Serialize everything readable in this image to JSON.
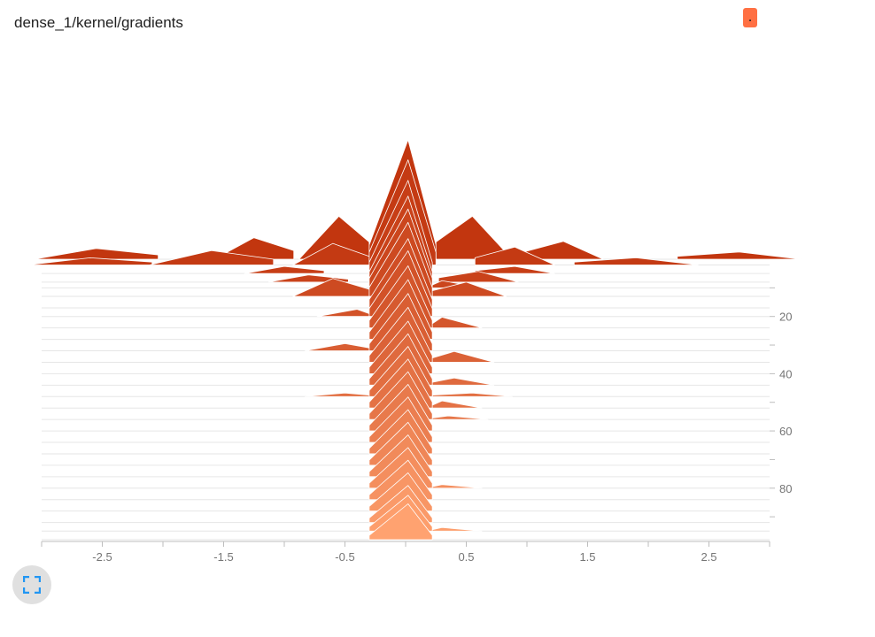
{
  "header": {
    "title": "dense_1/kernel/gradients",
    "run_badge": ".",
    "run_color": "#ff7043"
  },
  "controls": {
    "expand_icon": "fullscreen-icon",
    "expand_color": "#2196f3"
  },
  "chart_data": {
    "type": "histogram-ridgeline",
    "title": "dense_1/kernel/gradients",
    "x_ticks": [
      "-2.5",
      "-1.5",
      "-0.5",
      "0.5",
      "1.5",
      "2.5"
    ],
    "x_tick_values": [
      -2.5,
      -1.5,
      -0.5,
      0.5,
      1.5,
      2.5
    ],
    "xlim": [
      -3.0,
      3.0
    ],
    "y_ticks": [
      "20",
      "40",
      "60",
      "80"
    ],
    "y_tick_values": [
      20,
      40,
      60,
      80
    ],
    "ylim": [
      0,
      98
    ],
    "color_oldest": "#c2360f",
    "color_newest": "#ffa270",
    "steps": [
      {
        "step": 0,
        "peak": 1.0,
        "core": [
          -0.3,
          0.25
        ],
        "tails": [
          [
            -2.55,
            0.03
          ],
          [
            -1.25,
            0.06
          ],
          [
            -0.55,
            0.12
          ],
          [
            0.55,
            0.12
          ],
          [
            1.3,
            0.05
          ],
          [
            2.75,
            0.02
          ]
        ]
      },
      {
        "step": 2,
        "peak": 0.88,
        "core": [
          -0.3,
          0.25
        ],
        "tails": [
          [
            -2.6,
            0.02
          ],
          [
            -1.6,
            0.04
          ],
          [
            -0.6,
            0.06
          ],
          [
            0.9,
            0.05
          ],
          [
            1.9,
            0.02
          ]
        ]
      },
      {
        "step": 5,
        "peak": 0.78,
        "core": [
          -0.3,
          0.22
        ],
        "tails": [
          [
            -1.0,
            0.02
          ],
          [
            0.9,
            0.02
          ]
        ]
      },
      {
        "step": 8,
        "peak": 0.72,
        "core": [
          -0.3,
          0.22
        ],
        "tails": [
          [
            -0.8,
            0.02
          ],
          [
            0.6,
            0.03
          ]
        ]
      },
      {
        "step": 10,
        "peak": 0.66,
        "core": [
          -0.3,
          0.22
        ],
        "tails": [
          [
            0.3,
            0.02
          ]
        ]
      },
      {
        "step": 13,
        "peak": 0.62,
        "core": [
          -0.3,
          0.22
        ],
        "tails": [
          [
            -0.6,
            0.05
          ],
          [
            0.5,
            0.04
          ]
        ]
      },
      {
        "step": 17,
        "peak": 0.58,
        "core": [
          -0.3,
          0.22
        ],
        "tails": []
      },
      {
        "step": 20,
        "peak": 0.55,
        "core": [
          -0.3,
          0.22
        ],
        "tails": [
          [
            -0.4,
            0.02
          ]
        ]
      },
      {
        "step": 24,
        "peak": 0.52,
        "core": [
          -0.3,
          0.22
        ],
        "tails": [
          [
            0.3,
            0.03
          ]
        ]
      },
      {
        "step": 28,
        "peak": 0.5,
        "core": [
          -0.3,
          0.22
        ],
        "tails": []
      },
      {
        "step": 32,
        "peak": 0.48,
        "core": [
          -0.3,
          0.22
        ],
        "tails": [
          [
            -0.5,
            0.02
          ]
        ]
      },
      {
        "step": 36,
        "peak": 0.46,
        "core": [
          -0.3,
          0.22
        ],
        "tails": [
          [
            0.4,
            0.03
          ]
        ]
      },
      {
        "step": 40,
        "peak": 0.44,
        "core": [
          -0.3,
          0.22
        ],
        "tails": []
      },
      {
        "step": 44,
        "peak": 0.43,
        "core": [
          -0.3,
          0.22
        ],
        "tails": [
          [
            0.4,
            0.02
          ]
        ]
      },
      {
        "step": 48,
        "peak": 0.42,
        "core": [
          -0.3,
          0.22
        ],
        "tails": [
          [
            -0.5,
            0.01
          ],
          [
            0.55,
            0.01
          ]
        ]
      },
      {
        "step": 52,
        "peak": 0.41,
        "core": [
          -0.3,
          0.22
        ],
        "tails": [
          [
            0.3,
            0.02
          ]
        ]
      },
      {
        "step": 56,
        "peak": 0.4,
        "core": [
          -0.3,
          0.22
        ],
        "tails": [
          [
            0.35,
            0.01
          ]
        ]
      },
      {
        "step": 60,
        "peak": 0.39,
        "core": [
          -0.3,
          0.22
        ],
        "tails": []
      },
      {
        "step": 64,
        "peak": 0.38,
        "core": [
          -0.3,
          0.22
        ],
        "tails": []
      },
      {
        "step": 68,
        "peak": 0.37,
        "core": [
          -0.3,
          0.22
        ],
        "tails": []
      },
      {
        "step": 72,
        "peak": 0.36,
        "core": [
          -0.3,
          0.22
        ],
        "tails": []
      },
      {
        "step": 76,
        "peak": 0.35,
        "core": [
          -0.3,
          0.22
        ],
        "tails": []
      },
      {
        "step": 80,
        "peak": 0.34,
        "core": [
          -0.3,
          0.22
        ],
        "tails": [
          [
            0.3,
            0.01
          ]
        ]
      },
      {
        "step": 84,
        "peak": 0.33,
        "core": [
          -0.3,
          0.22
        ],
        "tails": []
      },
      {
        "step": 88,
        "peak": 0.32,
        "core": [
          -0.3,
          0.22
        ],
        "tails": []
      },
      {
        "step": 92,
        "peak": 0.31,
        "core": [
          -0.3,
          0.22
        ],
        "tails": []
      },
      {
        "step": 95,
        "peak": 0.3,
        "core": [
          -0.3,
          0.22
        ],
        "tails": [
          [
            0.3,
            0.01
          ]
        ]
      },
      {
        "step": 98,
        "peak": 0.3,
        "core": [
          -0.3,
          0.22
        ],
        "tails": []
      }
    ]
  }
}
